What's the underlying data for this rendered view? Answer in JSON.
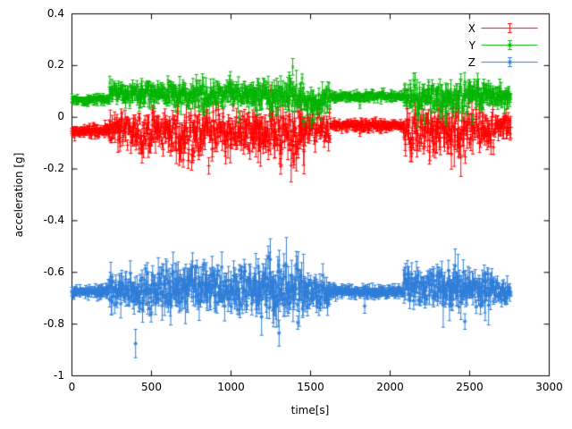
{
  "figure": {
    "background": "#ffffff"
  },
  "chart_data": {
    "type": "scatter",
    "style": "points-with-yerrorbars",
    "title": "",
    "xlabel": "time[s]",
    "ylabel": "acceleration [g]",
    "xlim": [
      0,
      3000
    ],
    "ylim": [
      -1,
      0.4
    ],
    "xticks": [
      "0",
      "500",
      "1000",
      "1500",
      "2000",
      "2500",
      "3000"
    ],
    "yticks": [
      "-1",
      "-0.8",
      "-0.6",
      "-0.4",
      "-0.2",
      "0",
      "0.2",
      "0.4"
    ],
    "grid": false,
    "sample_step_s": 3,
    "time_range_s": [
      0,
      2760
    ],
    "legend": {
      "position": "top-right-inside",
      "entries": [
        {
          "label": "X",
          "color": "#ff0000",
          "marker": "plus"
        },
        {
          "label": "Y",
          "color": "#00b400",
          "marker": "cross"
        },
        {
          "label": "Z",
          "color": "#2f7ed8",
          "marker": "asterisk"
        }
      ]
    },
    "series": [
      {
        "name": "X",
        "color": "#ff0000",
        "marker": "plus",
        "seed": 101,
        "segments": [
          [
            0,
            100,
            -0.055,
            0.006,
            0.01
          ],
          [
            100,
            235,
            -0.05,
            0.008,
            0.012
          ],
          [
            235,
            420,
            -0.05,
            0.025,
            0.022
          ],
          [
            420,
            650,
            -0.055,
            0.034,
            0.028
          ],
          [
            650,
            900,
            -0.062,
            0.042,
            0.032
          ],
          [
            900,
            1150,
            -0.052,
            0.034,
            0.028
          ],
          [
            1150,
            1460,
            -0.06,
            0.048,
            0.036
          ],
          [
            1460,
            1625,
            -0.04,
            0.028,
            0.024
          ],
          [
            1625,
            2085,
            -0.032,
            0.007,
            0.01
          ],
          [
            2085,
            2310,
            -0.048,
            0.038,
            0.03
          ],
          [
            2310,
            2490,
            -0.05,
            0.042,
            0.032
          ],
          [
            2490,
            2650,
            -0.042,
            0.034,
            0.028
          ],
          [
            2650,
            2760,
            -0.035,
            0.018,
            0.018
          ]
        ],
        "outliers": [
          [
            700,
            -0.165,
            0.028
          ],
          [
            760,
            -0.15,
            0.026
          ],
          [
            1250,
            0.105,
            0.02
          ],
          [
            1312,
            -0.19,
            0.03
          ],
          [
            1395,
            -0.168,
            0.028
          ],
          [
            1810,
            -0.062,
            0.012
          ],
          [
            2270,
            -0.125,
            0.026
          ]
        ]
      },
      {
        "name": "Y",
        "color": "#00b400",
        "marker": "cross",
        "seed": 202,
        "segments": [
          [
            0,
            100,
            0.065,
            0.005,
            0.008
          ],
          [
            100,
            235,
            0.07,
            0.007,
            0.01
          ],
          [
            235,
            420,
            0.09,
            0.016,
            0.018
          ],
          [
            420,
            650,
            0.09,
            0.018,
            0.02
          ],
          [
            650,
            900,
            0.085,
            0.02,
            0.022
          ],
          [
            900,
            1150,
            0.09,
            0.018,
            0.02
          ],
          [
            1150,
            1460,
            0.085,
            0.022,
            0.024
          ],
          [
            1460,
            1625,
            0.06,
            0.022,
            0.022
          ],
          [
            1625,
            2085,
            0.08,
            0.006,
            0.009
          ],
          [
            2085,
            2310,
            0.08,
            0.022,
            0.022
          ],
          [
            2310,
            2490,
            0.075,
            0.026,
            0.024
          ],
          [
            2490,
            2650,
            0.09,
            0.022,
            0.022
          ],
          [
            2650,
            2760,
            0.08,
            0.016,
            0.018
          ]
        ],
        "outliers": [
          [
            1050,
            0.0,
            0.018
          ],
          [
            1388,
            0.195,
            0.032
          ],
          [
            1455,
            -0.015,
            0.018
          ],
          [
            1505,
            -0.02,
            0.018
          ],
          [
            1810,
            0.046,
            0.012
          ],
          [
            2215,
            -0.008,
            0.018
          ],
          [
            2355,
            -0.012,
            0.018
          ],
          [
            2520,
            -0.008,
            0.018
          ]
        ]
      },
      {
        "name": "Z",
        "color": "#2f7ed8",
        "marker": "asterisk",
        "seed": 303,
        "segments": [
          [
            0,
            100,
            -0.675,
            0.006,
            0.01
          ],
          [
            100,
            235,
            -0.67,
            0.008,
            0.012
          ],
          [
            235,
            420,
            -0.67,
            0.028,
            0.028
          ],
          [
            420,
            650,
            -0.665,
            0.032,
            0.032
          ],
          [
            650,
            900,
            -0.652,
            0.038,
            0.036
          ],
          [
            900,
            1150,
            -0.668,
            0.032,
            0.032
          ],
          [
            1150,
            1460,
            -0.668,
            0.042,
            0.045
          ],
          [
            1460,
            1625,
            -0.675,
            0.028,
            0.028
          ],
          [
            1625,
            2085,
            -0.675,
            0.008,
            0.012
          ],
          [
            2085,
            2310,
            -0.658,
            0.032,
            0.032
          ],
          [
            2310,
            2490,
            -0.662,
            0.038,
            0.036
          ],
          [
            2490,
            2650,
            -0.668,
            0.032,
            0.032
          ],
          [
            2650,
            2760,
            -0.675,
            0.018,
            0.018
          ]
        ],
        "outliers": [
          [
            400,
            -0.875,
            0.055
          ],
          [
            1247,
            -0.55,
            0.08
          ],
          [
            1302,
            -0.835,
            0.05
          ],
          [
            1840,
            -0.73,
            0.028
          ],
          [
            2470,
            -0.79,
            0.03
          ]
        ]
      }
    ]
  }
}
